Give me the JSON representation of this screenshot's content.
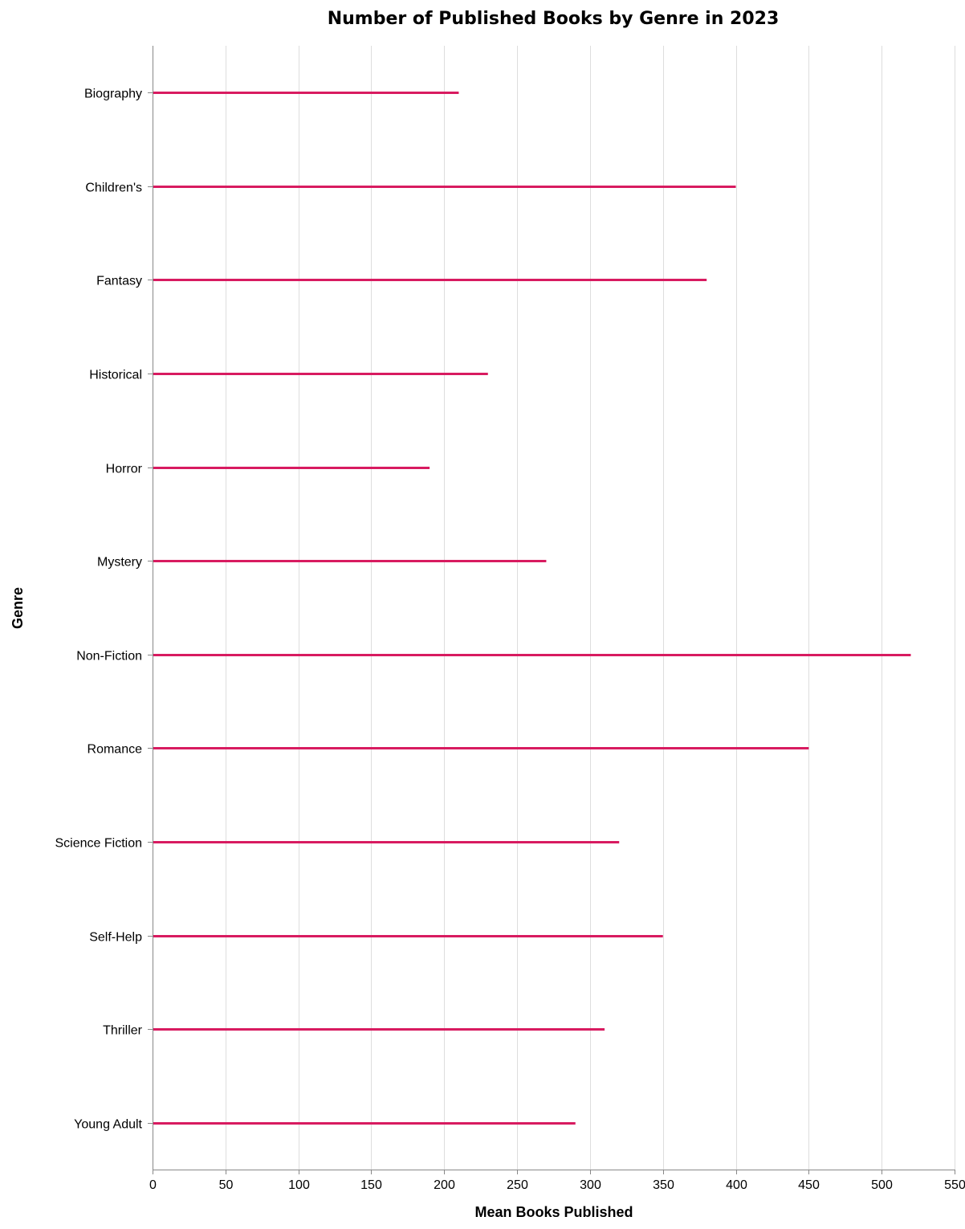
{
  "chart_data": {
    "type": "bar",
    "title": "Number of Published Books by Genre in 2023",
    "xlabel": "Mean Books Published",
    "ylabel": "Genre",
    "xlim": [
      0,
      550
    ],
    "x_ticks": [
      0,
      50,
      100,
      150,
      200,
      250,
      300,
      350,
      400,
      450,
      500,
      550
    ],
    "grid": true,
    "orientation": "horizontal",
    "categories": [
      "Biography",
      "Children's",
      "Fantasy",
      "Historical",
      "Horror",
      "Mystery",
      "Non-Fiction",
      "Romance",
      "Science Fiction",
      "Self-Help",
      "Thriller",
      "Young Adult"
    ],
    "values": [
      210,
      400,
      380,
      230,
      190,
      270,
      520,
      450,
      320,
      350,
      310,
      290
    ],
    "bar_color": "#d81b60"
  }
}
